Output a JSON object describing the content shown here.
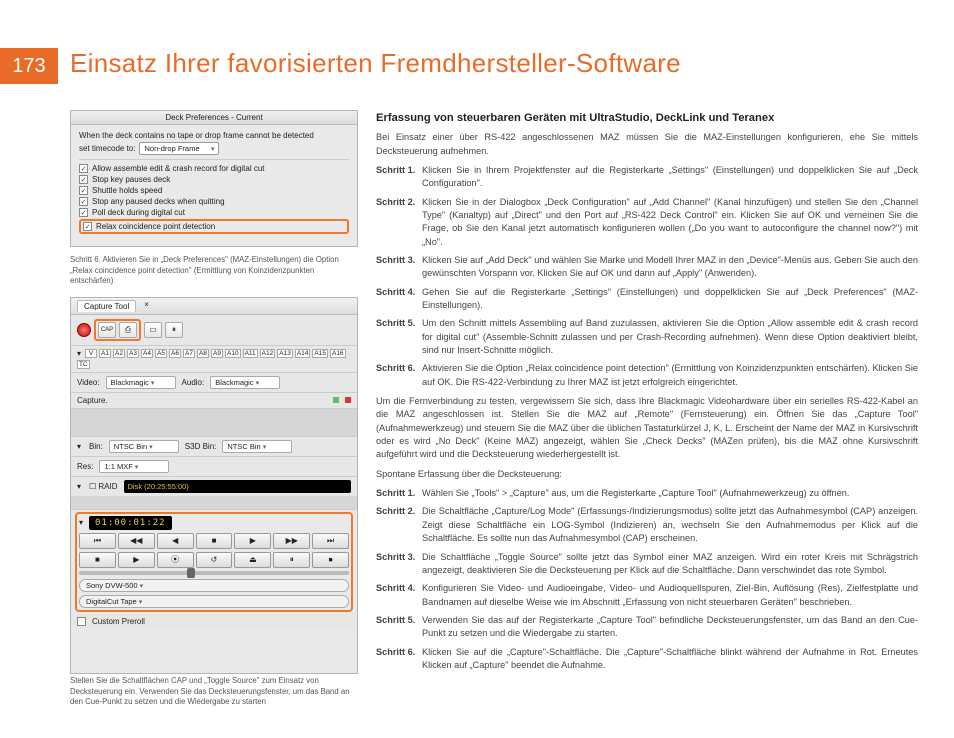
{
  "page_number": "173",
  "title": "Einsatz Ihrer favorisierten Fremdhersteller-Software",
  "heading1": "Erfassung von steuerbaren Geräten mit UltraStudio, DeckLink und Teranex",
  "intro": "Bei Einsatz einer über RS-422 angeschlossenen MAZ müssen Sie die MAZ-Einstellungen konfigurieren, ehe Sie mittels Decksteuerung aufnehmen.",
  "stepsA": [
    {
      "n": "Schritt 1.",
      "t": "Klicken Sie in Ihrem Projektfenster auf die Registerkarte „Settings\" (Einstellungen) und doppelklicken Sie auf „Deck Configuration\"."
    },
    {
      "n": "Schritt 2.",
      "t": "Klicken Sie in der Dialogbox „Deck Configuration\" auf „Add Channel\" (Kanal hinzufügen) und stellen Sie den „Channel Type\" (Kanaltyp) auf „Direct\" und den Port auf „RS-422 Deck Control\" ein. Klicken Sie auf OK und verneinen Sie die Frage, ob Sie den Kanal jetzt automatisch konfigurieren wollen („Do you want to autoconfigure the channel now?\") mit „No\"."
    },
    {
      "n": "Schritt 3.",
      "t": "Klicken Sie auf „Add Deck\" und wählen Sie Marke und Modell Ihrer MAZ in den „Device\"-Menüs aus. Geben Sie auch den gewünschten Vorspann vor. Klicken Sie auf OK und dann auf „Apply\" (Anwenden)."
    },
    {
      "n": "Schritt 4.",
      "t": "Gehen Sie auf die Registerkarte „Settings\" (Einstellungen) und doppelklicken Sie auf „Deck Preferences\" (MAZ-Einstellungen)."
    },
    {
      "n": "Schritt 5.",
      "t": "Um den Schnitt mittels Assembling auf Band zuzulassen, aktivieren Sie die Option „Allow assemble edit & crash record for digital cut\" (Assemble-Schnitt zulassen und per Crash-Recording aufnehmen). Wenn diese Option deaktiviert bleibt, sind nur Insert-Schnitte möglich."
    },
    {
      "n": "Schritt 6.",
      "t": "Aktivieren Sie die Option „Relax coincidence point detection\" (Ermittlung von Koinzidenzpunkten entschärfen). Klicken Sie auf OK. Die RS-422-Verbindung zu Ihrer MAZ ist jetzt erfolgreich eingerichtet."
    }
  ],
  "paraB": "Um die Fernverbindung zu testen, vergewissern Sie sich, dass Ihre Blackmagic Videohardware über ein serielles RS-422-Kabel an die MAZ angeschlossen ist. Stellen Sie die MAZ auf „Remote\" (Fernsteuerung) ein. Öffnen Sie das „Capture Tool\" (Aufnahmewerkzeug) und steuern Sie die MAZ über die üblichen Tastaturkürzel J, K, L. Erscheint der Name der MAZ in Kursivschrift oder es wird „No Deck\" (Keine MAZ) angezeigt, wählen Sie „Check Decks\" (MAZen prüfen), bis die MAZ ohne Kursivschrift aufgeführt wird und die Decksteuerung wiederhergestellt ist.",
  "paraC": "Spontane Erfassung über die Decksteuerung:",
  "stepsB": [
    {
      "n": "Schritt 1.",
      "t": "Wählen Sie „Tools\" > „Capture\" aus, um die Registerkarte „Capture Tool\" (Aufnahmewerkzeug) zu öffnen."
    },
    {
      "n": "Schritt 2.",
      "t": "Die Schaltfläche „Capture/Log Mode\" (Erfassungs-/Indizierungsmodus) sollte jetzt das Aufnahmesymbol (CAP) anzeigen. Zeigt diese Schaltfläche ein LOG-Symbol (Indizieren) an, wechseln Sie den Aufnahmemodus per Klick auf die Schaltfläche. Es sollte nun das Aufnahmesymbol (CAP) erscheinen."
    },
    {
      "n": "Schritt 3.",
      "t": "Die Schaltfläche „Toggle Source\" sollte jetzt das Symbol einer MAZ anzeigen. Wird ein roter Kreis mit Schrägstrich angezeigt, deaktivieren Sie die Decksteuerung per Klick auf die Schaltfläche. Dann verschwindet das rote Symbol."
    },
    {
      "n": "Schritt 4.",
      "t": "Konfigurieren Sie Video- und Audioeingabe, Video- und Audioquellspuren, Ziel-Bin, Auflösung (Res), Zielfestplatte und Bandnamen auf dieselbe Weise wie im Abschnitt „Erfassung von nicht steuerbaren Geräten\" beschrieben."
    },
    {
      "n": "Schritt 5.",
      "t": "Verwenden Sie das auf der Registerkarte „Capture Tool\" befindliche Decksteuerungsfenster, um das Band an den Cue-Punkt zu setzen und die Wiedergabe zu starten."
    },
    {
      "n": "Schritt 6.",
      "t": "Klicken Sie auf die „Capture\"-Schaltfläche. Die „Capture\"-Schaltfläche blinkt während der Aufnahme in Rot. Erneutes Klicken auf „Capture\" beendet die Aufnahme."
    }
  ],
  "mock1": {
    "title": "Deck Preferences - Current",
    "line1_a": "When the deck contains no tape or drop frame cannot be detected",
    "line1_b": "set timecode to:",
    "select_val": "Non-drop Frame",
    "checks": [
      "Allow assemble edit & crash record for digital cut",
      "Stop key pauses deck",
      "Shuttle holds speed",
      "Stop any paused decks when quitting",
      "Poll deck during digital cut",
      "Relax coincidence point detection"
    ]
  },
  "caption1": "Schritt 6. Aktivieren Sie in „Deck Preferences\" (MAZ-Einstellungen) die Option „Relax coincidence point detection\" (Ermittlung von Koinzidenzpunkten entschärfen)",
  "mock2": {
    "tab1": "Capture Tool",
    "close": "×",
    "btns": [
      "CAP",
      "⎙",
      "▭",
      "⏸"
    ],
    "tracks": [
      "V",
      "A1",
      "A2",
      "A3",
      "A4",
      "A5",
      "A6",
      "A7",
      "A8",
      "A9",
      "A10",
      "A11",
      "A12",
      "A13",
      "A14",
      "A15",
      "A16",
      "TC"
    ],
    "video_lbl": "Video:",
    "video_val": "Blackmagic",
    "audio_lbl": "Audio:",
    "audio_val": "Blackmagic",
    "capture_lbl": "Capture.",
    "bin_lbl": "Bin:",
    "bin_val": "NTSC Bin",
    "s3d_lbl": "S3D Bin:",
    "s3d_val": "NTSC Bin",
    "res_lbl": "Res:",
    "res_val": "1:1 MXF",
    "raid_lbl": "☐ RAID",
    "disk": "Disk (20:25:55:00)",
    "tc": "01:00:01:22",
    "transport": [
      "⏮",
      "◀◀",
      "◀",
      "■",
      "▶",
      "▶▶",
      "⏭"
    ],
    "transport2": [
      "■",
      "▶",
      "⦿",
      "↺",
      "⏏",
      "⏸",
      "⏹"
    ],
    "deck": "Sony DVW-500",
    "tape": "DigitalCut Tape",
    "preroll": "Custom Preroll"
  },
  "caption2": "Stellen Sie die Schaltflächen CAP und „Toggle Source\" zum Einsatz von Decksteuerung ein. Verwenden Sie das Decksteuerungsfenster, um das Band an den Cue-Punkt zu setzen und die Wiedergabe zu starten",
  "colors": {
    "accent": "#e86c28",
    "highlight": "#ea7a2e"
  }
}
